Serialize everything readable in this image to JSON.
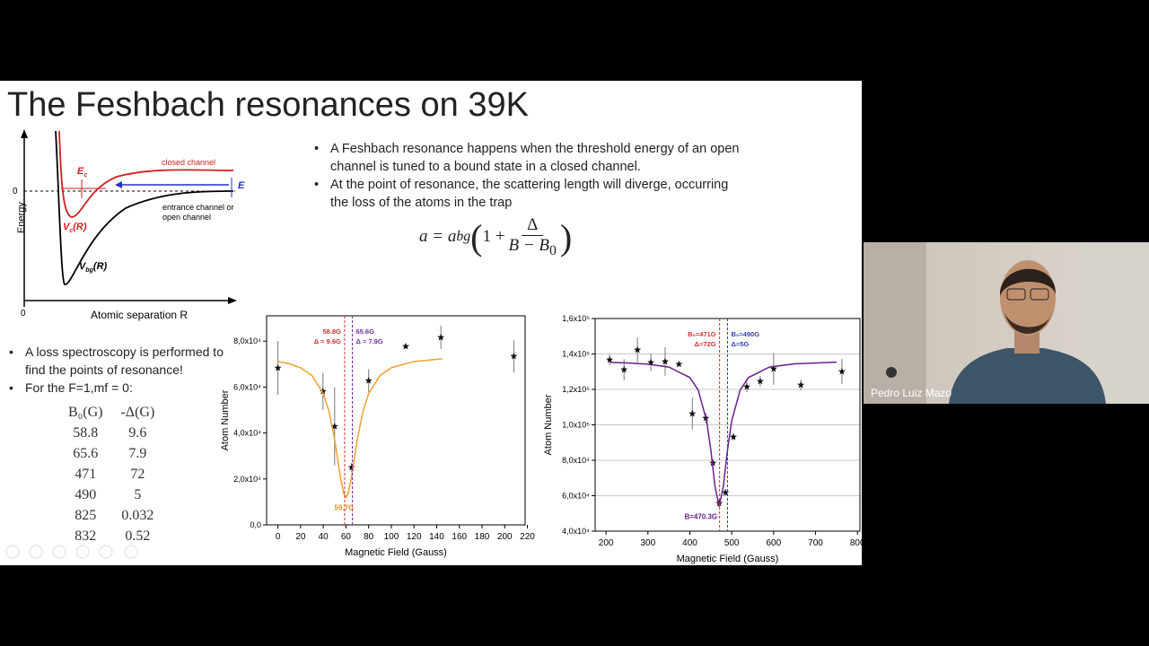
{
  "slide": {
    "title": "The Feshbach resonances on 39K",
    "bullets_top": [
      "A Feshbach resonance happens when the threshold energy of an open channel is tuned to a bound state in a closed channel.",
      "At the point of resonance, the scattering length will diverge, occurring the loss of the atoms in the trap"
    ],
    "formula": {
      "lhs": "a = a",
      "lhs_sub": "bg",
      "one": "1 +",
      "num": "Δ",
      "den": "B − B",
      "den_sub": "0"
    },
    "bullets_bottom": [
      "A loss spectroscopy is performed to find the points of resonance!",
      "For the F=1,mf = 0:"
    ],
    "table": {
      "header": [
        "B₀(G)",
        "-Δ(G)"
      ],
      "rows": [
        [
          "58.8",
          "9.6"
        ],
        [
          "65.6",
          "7.9"
        ],
        [
          "471",
          "72"
        ],
        [
          "490",
          "5"
        ],
        [
          "825",
          "0.032"
        ],
        [
          "832",
          "0.52"
        ]
      ]
    }
  },
  "diagram": {
    "y_label": "Energy",
    "x_label": "Atomic separation R",
    "zero_y": "0",
    "zero_x": "0",
    "closed": "closed channel",
    "entrance_1": "entrance channel or",
    "entrance_2": "open channel",
    "ec": "E",
    "ec_sub": "c",
    "e": "E",
    "vc": "V",
    "vc_sub": "c",
    "vc_r": "(R)",
    "vbg": "V",
    "vbg_sub": "bg",
    "vbg_r": "(R)"
  },
  "chart_data": [
    {
      "type": "scatter",
      "x_label": "Magnetic Field (Gauss)",
      "y_label": "Atom Number",
      "xlim": [
        -10,
        218
      ],
      "ylim": [
        0,
        91000
      ],
      "xticks": [
        0,
        20,
        40,
        60,
        80,
        100,
        120,
        140,
        160,
        180,
        200,
        220
      ],
      "yticks": [
        {
          "value": 0,
          "label": "0,0"
        },
        {
          "value": 20000,
          "label": "2,0x10⁴"
        },
        {
          "value": 40000,
          "label": "4,0x10⁴"
        },
        {
          "value": 60000,
          "label": "6,0x10⁴"
        },
        {
          "value": 80000,
          "label": "8,0x10⁴"
        }
      ],
      "grid": false,
      "series": [
        {
          "style": "stars",
          "color": "#111111",
          "x": [
            0,
            39.7,
            50,
            65,
            80,
            112.7,
            143.7,
            208
          ],
          "values": [
            68300,
            58100,
            42900,
            25000,
            62800,
            77700,
            81600,
            73400
          ],
          "errors": [
            11700,
            8000,
            17000,
            2000,
            5000,
            0,
            5000,
            7000
          ]
        },
        {
          "style": "line",
          "color": "#f0a030",
          "x": [
            0,
            10,
            20,
            30,
            40,
            45,
            50,
            55,
            58,
            60,
            62,
            65,
            70,
            75,
            80,
            90,
            100,
            120,
            145
          ],
          "values": [
            71100,
            70150,
            68400,
            65000,
            57200,
            49500,
            37200,
            21100,
            13700,
            12000,
            13700,
            21100,
            37200,
            49500,
            57200,
            65000,
            68400,
            71100,
            72300
          ]
        }
      ],
      "markers": [
        {
          "x": 58.8,
          "color": "#d03030",
          "labels": [
            "58.8G",
            "Δ = 9.6G"
          ],
          "side": "left"
        },
        {
          "x": 65.6,
          "color": "#7030a0",
          "labels": [
            "65.6G",
            "Δ = 7.9G"
          ],
          "side": "right"
        }
      ],
      "min_label": {
        "text": "59.7G",
        "color": "#e09020"
      }
    },
    {
      "type": "scatter",
      "x_label": "Magnetic Field (Gauss)",
      "y_label": "Atom Number",
      "xlim": [
        174,
        806
      ],
      "ylim": [
        40000,
        160000
      ],
      "xticks": [
        200,
        300,
        400,
        500,
        600,
        700,
        800
      ],
      "yticks": [
        {
          "value": 40000,
          "label": "4,0x10⁴"
        },
        {
          "value": 60000,
          "label": "6,0x10⁴"
        },
        {
          "value": 80000,
          "label": "8,0x10⁴"
        },
        {
          "value": 100000,
          "label": "1,0x10⁵"
        },
        {
          "value": 120000,
          "label": "1,2x10⁵"
        },
        {
          "value": 140000,
          "label": "1,4x10⁵"
        },
        {
          "value": 160000,
          "label": "1,6x10⁵"
        }
      ],
      "grid": true,
      "series": [
        {
          "style": "stars",
          "color": "#111111",
          "x": [
            208.6,
            243,
            275,
            307,
            341,
            374,
            406,
            438,
            455,
            470,
            485,
            504,
            536,
            568,
            600,
            665,
            763
          ],
          "values": [
            136700,
            131100,
            142300,
            135200,
            135700,
            134200,
            106300,
            103800,
            78500,
            55700,
            61800,
            93200,
            121500,
            124600,
            131600,
            122500,
            130100
          ],
          "errors": [
            3000,
            6000,
            7000,
            5000,
            8000,
            0,
            9000,
            3000,
            2000,
            2000,
            2000,
            2000,
            3000,
            3000,
            9000,
            3000,
            7000
          ]
        },
        {
          "style": "line",
          "color": "#6a1f8a",
          "x": [
            210,
            250,
            300,
            350,
            400,
            420,
            440,
            450,
            460,
            470,
            480,
            490,
            500,
            520,
            540,
            590,
            650,
            750
          ],
          "values": [
            135250,
            134950,
            134260,
            132600,
            126700,
            119600,
            102400,
            86000,
            65300,
            54000,
            65300,
            86000,
            102400,
            119600,
            126700,
            132600,
            134450,
            135350
          ]
        }
      ],
      "markers": [
        {
          "x": 471,
          "color": "#d03030",
          "labels": [
            "B₀=471G",
            "Δ=72G"
          ],
          "side": "left"
        },
        {
          "x": 490,
          "color": "#3040b0",
          "labels": [
            "B₀=490G",
            "Δ=5G"
          ],
          "side": "right"
        }
      ],
      "min_label": {
        "text": "B=470.3G",
        "color": "#6a1f8a"
      }
    }
  ],
  "presenter": {
    "name": "Pedro Luiz Mazo"
  }
}
